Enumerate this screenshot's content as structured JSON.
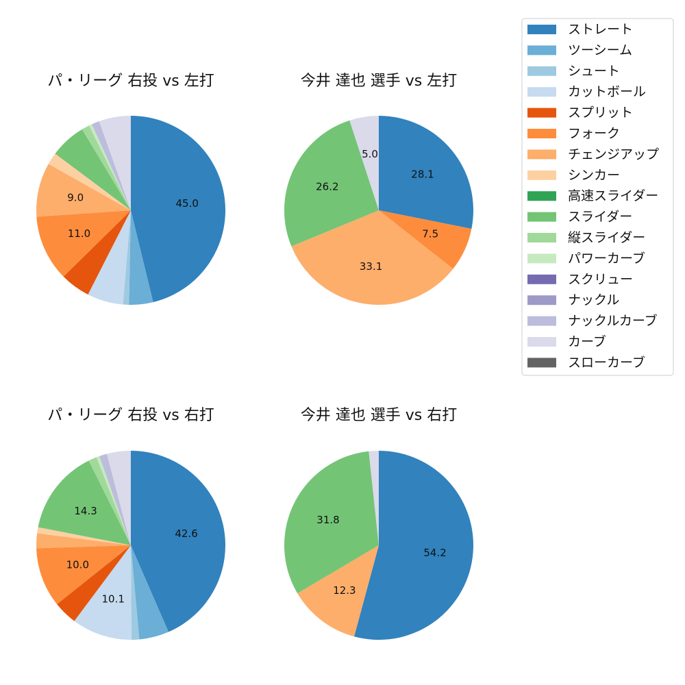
{
  "chart_data": [
    {
      "type": "pie",
      "title": "パ・リーグ 右投 vs 左打",
      "slices": [
        {
          "category": "ストレート",
          "value": 45.0,
          "label": "45.0"
        },
        {
          "category": "ツーシーム",
          "value": 4.0,
          "label": ""
        },
        {
          "category": "シュート",
          "value": 1.0,
          "label": ""
        },
        {
          "category": "カットボール",
          "value": 6.0,
          "label": ""
        },
        {
          "category": "スプリット",
          "value": 5.0,
          "label": ""
        },
        {
          "category": "フォーク",
          "value": 11.0,
          "label": "11.0"
        },
        {
          "category": "チェンジアップ",
          "value": 9.0,
          "label": "9.0"
        },
        {
          "category": "シンカー",
          "value": 2.0,
          "label": ""
        },
        {
          "category": "スライダー",
          "value": 6.0,
          "label": ""
        },
        {
          "category": "縦スライダー",
          "value": 1.3,
          "label": ""
        },
        {
          "category": "パワーカーブ",
          "value": 0.5,
          "label": ""
        },
        {
          "category": "ナックルカーブ",
          "value": 1.3,
          "label": ""
        },
        {
          "category": "カーブ",
          "value": 5.3,
          "label": ""
        }
      ]
    },
    {
      "type": "pie",
      "title": "今井 達也 選手 vs 左打",
      "slices": [
        {
          "category": "ストレート",
          "value": 28.1,
          "label": "28.1"
        },
        {
          "category": "フォーク",
          "value": 7.5,
          "label": "7.5"
        },
        {
          "category": "チェンジアップ",
          "value": 33.1,
          "label": "33.1"
        },
        {
          "category": "スライダー",
          "value": 26.2,
          "label": "26.2"
        },
        {
          "category": "カーブ",
          "value": 5.0,
          "label": "5.0"
        }
      ]
    },
    {
      "type": "pie",
      "title": "パ・リーグ 右投 vs 右打",
      "slices": [
        {
          "category": "ストレート",
          "value": 42.6,
          "label": "42.6"
        },
        {
          "category": "ツーシーム",
          "value": 5.0,
          "label": ""
        },
        {
          "category": "シュート",
          "value": 1.3,
          "label": ""
        },
        {
          "category": "カットボール",
          "value": 10.1,
          "label": "10.1"
        },
        {
          "category": "スプリット",
          "value": 4.0,
          "label": ""
        },
        {
          "category": "フォーク",
          "value": 10.0,
          "label": "10.0"
        },
        {
          "category": "チェンジアップ",
          "value": 2.5,
          "label": ""
        },
        {
          "category": "シンカー",
          "value": 1.0,
          "label": ""
        },
        {
          "category": "スライダー",
          "value": 14.3,
          "label": "14.3"
        },
        {
          "category": "縦スライダー",
          "value": 1.4,
          "label": ""
        },
        {
          "category": "パワーカーブ",
          "value": 0.5,
          "label": ""
        },
        {
          "category": "ナックルカーブ",
          "value": 1.3,
          "label": ""
        },
        {
          "category": "カーブ",
          "value": 4.0,
          "label": ""
        }
      ]
    },
    {
      "type": "pie",
      "title": "今井 達也 選手 vs 右打",
      "slices": [
        {
          "category": "ストレート",
          "value": 54.2,
          "label": "54.2"
        },
        {
          "category": "チェンジアップ",
          "value": 12.3,
          "label": "12.3"
        },
        {
          "category": "スライダー",
          "value": 31.8,
          "label": "31.8"
        },
        {
          "category": "カーブ",
          "value": 1.7,
          "label": ""
        }
      ]
    }
  ],
  "legend": {
    "placement": "top-right",
    "items": [
      {
        "label": "ストレート",
        "color": "#3182bd"
      },
      {
        "label": "ツーシーム",
        "color": "#6baed6"
      },
      {
        "label": "シュート",
        "color": "#9ecae1"
      },
      {
        "label": "カットボール",
        "color": "#c6dbef"
      },
      {
        "label": "スプリット",
        "color": "#e6550d"
      },
      {
        "label": "フォーク",
        "color": "#fd8d3c"
      },
      {
        "label": "チェンジアップ",
        "color": "#fdae6b"
      },
      {
        "label": "シンカー",
        "color": "#fdd0a2"
      },
      {
        "label": "高速スライダー",
        "color": "#31a354"
      },
      {
        "label": "スライダー",
        "color": "#74c476"
      },
      {
        "label": "縦スライダー",
        "color": "#a1d99b"
      },
      {
        "label": "パワーカーブ",
        "color": "#c7e9c0"
      },
      {
        "label": "スクリュー",
        "color": "#756bb1"
      },
      {
        "label": "ナックル",
        "color": "#9e9ac8"
      },
      {
        "label": "ナックルカーブ",
        "color": "#bcbddc"
      },
      {
        "label": "カーブ",
        "color": "#dadaeb"
      },
      {
        "label": "スローカーブ",
        "color": "#636363"
      }
    ]
  }
}
